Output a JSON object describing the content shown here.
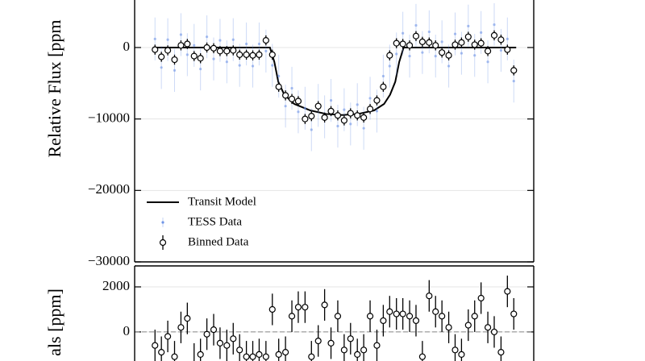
{
  "chart_data": [
    {
      "type": "errorbar",
      "ylabel": "Relative Flux [ppm",
      "xlim": [
        0,
        100
      ],
      "ylim": [
        -30000,
        6650
      ],
      "yticks": [
        0,
        {
          "value": -10000,
          "label": "−10000"
        },
        {
          "value": -20000,
          "label": "−20000"
        },
        {
          "value": -30000,
          "label": "−30000"
        }
      ],
      "grid": true,
      "legend": "lower left",
      "series": [
        {
          "name": "Transit Model",
          "style": "line",
          "color": "#000000",
          "x": [
            4.6,
            33.9,
            35.0,
            36.0,
            37.5,
            40.0,
            44.0,
            48.0,
            52.0,
            56.0,
            60.0,
            62.5,
            64.0,
            65.3,
            66.3,
            67.4,
            95.6
          ],
          "values": [
            0,
            0,
            -2000,
            -4800,
            -6600,
            -7900,
            -8800,
            -9300,
            -9450,
            -9300,
            -8800,
            -7900,
            -6600,
            -4800,
            -2000,
            0,
            0
          ]
        },
        {
          "name": "TESS Data",
          "style": "dots",
          "color": "#6f94e6",
          "error": 3000,
          "x": [
            5.1,
            6.7,
            8.3,
            10.0,
            11.6,
            13.2,
            14.9,
            16.5,
            18.1,
            19.8,
            21.4,
            23.1,
            24.7,
            26.3,
            28.0,
            29.6,
            31.2,
            32.9,
            34.5,
            36.1,
            37.8,
            39.4,
            41.0,
            42.7,
            44.3,
            46.0,
            47.6,
            49.2,
            50.9,
            52.5,
            54.1,
            55.8,
            57.4,
            59.0,
            60.7,
            62.3,
            63.9,
            65.6,
            67.2,
            68.9,
            70.5,
            72.1,
            73.8,
            75.4,
            77.0,
            78.7,
            80.3,
            81.9,
            83.6,
            85.2,
            86.8,
            88.5,
            90.1,
            91.8,
            93.4,
            95.0
          ],
          "values": [
            1200,
            -2800,
            1100,
            -3200,
            1800,
            -1000,
            300,
            -3000,
            1500,
            -1600,
            1000,
            -2000,
            1100,
            -2500,
            500,
            -2600,
            500,
            -500,
            -2500,
            -4000,
            -8200,
            -5700,
            -9000,
            -8500,
            -11500,
            -8100,
            -9700,
            -7400,
            -11000,
            -8700,
            -10700,
            -8000,
            -11300,
            -7100,
            -8900,
            -4000,
            -2600,
            -900,
            2000,
            -1200,
            3100,
            -700,
            2200,
            -1200,
            800,
            -2600,
            1900,
            -800,
            3000,
            -1100,
            2100,
            -2000,
            3200,
            -400,
            1200,
            -4700
          ]
        },
        {
          "name": "Binned Data",
          "style": "errorbar",
          "color": "#000000",
          "error": 700,
          "x": [
            5.1,
            6.7,
            8.3,
            10.0,
            11.6,
            13.2,
            14.9,
            16.5,
            18.1,
            19.8,
            21.4,
            23.1,
            24.7,
            26.3,
            28.0,
            29.6,
            31.2,
            32.9,
            34.5,
            36.1,
            37.8,
            39.4,
            41.0,
            42.7,
            44.3,
            46.0,
            47.6,
            49.2,
            50.9,
            52.5,
            54.1,
            55.8,
            57.4,
            59.0,
            60.7,
            62.3,
            63.9,
            65.6,
            67.2,
            68.9,
            70.5,
            72.1,
            73.8,
            75.4,
            77.0,
            78.7,
            80.3,
            81.9,
            83.6,
            85.2,
            86.8,
            88.5,
            90.1,
            91.8,
            93.4,
            95.0
          ],
          "values": [
            -300,
            -1300,
            -400,
            -1700,
            300,
            500,
            -1200,
            -1500,
            0,
            -100,
            -500,
            -500,
            -400,
            -1000,
            -1000,
            -1100,
            -1000,
            1000,
            -1000,
            -5500,
            -6700,
            -7200,
            -7500,
            -10000,
            -9600,
            -8200,
            -9800,
            -8900,
            -9500,
            -10200,
            -9200,
            -9500,
            -9800,
            -8600,
            -7400,
            -5500,
            -1100,
            600,
            500,
            300,
            1600,
            800,
            700,
            300,
            -700,
            -1100,
            400,
            700,
            1500,
            400,
            600,
            -500,
            1700,
            1100,
            -300,
            -3200
          ]
        }
      ]
    },
    {
      "type": "errorbar",
      "ylabel": "als [ppm]",
      "xlim": [
        0,
        100
      ],
      "ylim": [
        -1290,
        2930
      ],
      "yticks": [
        0,
        2000
      ],
      "grid": true,
      "zero_line": true,
      "series": [
        {
          "style": "errorbar",
          "color": "#000000",
          "error": 700,
          "x": [
            5.1,
            6.7,
            8.3,
            10.0,
            11.6,
            13.2,
            14.9,
            16.5,
            18.1,
            19.8,
            21.4,
            23.1,
            24.7,
            26.3,
            28.0,
            29.6,
            31.2,
            32.9,
            34.5,
            36.1,
            37.8,
            39.4,
            41.0,
            42.7,
            44.3,
            46.0,
            47.6,
            49.2,
            50.9,
            52.5,
            54.1,
            55.8,
            57.4,
            59.0,
            60.7,
            62.3,
            63.9,
            65.6,
            67.2,
            68.9,
            70.5,
            72.1,
            73.8,
            75.4,
            77.0,
            78.7,
            80.3,
            81.9,
            83.6,
            85.2,
            86.8,
            88.5,
            90.1,
            91.8,
            93.4,
            95.0
          ],
          "values": [
            -600,
            -900,
            -200,
            -1100,
            200,
            600,
            -1200,
            -1000,
            -100,
            100,
            -500,
            -600,
            -300,
            -800,
            -1100,
            -1100,
            -1000,
            -1100,
            1000,
            -1000,
            -900,
            700,
            1100,
            1100,
            -1100,
            -400,
            1200,
            -500,
            700,
            -800,
            -300,
            -1000,
            -800,
            700,
            -600,
            500,
            900,
            800,
            800,
            700,
            500,
            -1100,
            1600,
            900,
            700,
            200,
            -800,
            -1000,
            300,
            700,
            1500,
            200,
            0,
            -900,
            1800,
            800
          ]
        }
      ]
    }
  ]
}
